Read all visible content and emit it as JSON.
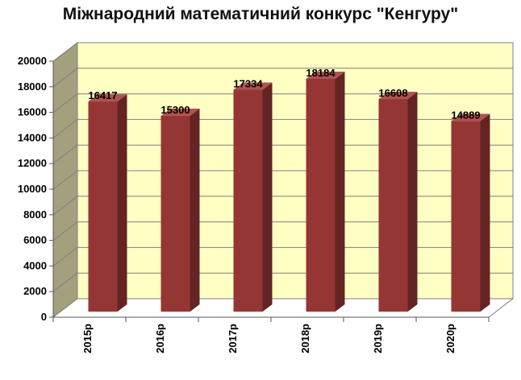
{
  "chart_data": {
    "type": "bar",
    "title": "Міжнародний математичний конкурс \"Кенгуру\"",
    "categories": [
      "2015р",
      "2016р",
      "2017р",
      "2018р",
      "2019р",
      "2020р"
    ],
    "series": [
      {
        "values": [
          16417,
          15300,
          17334,
          18184,
          16608,
          14889
        ]
      }
    ],
    "data_labels": [
      "16417",
      "15300",
      "17334",
      "18184",
      "16608",
      "14889"
    ],
    "ylim": [
      0,
      20000
    ],
    "yticks": [
      0,
      2000,
      4000,
      6000,
      8000,
      10000,
      12000,
      14000,
      16000,
      18000,
      20000
    ],
    "ytick_labels": [
      "0",
      "2000",
      "4000",
      "6000",
      "8000",
      "10000",
      "12000",
      "14000",
      "16000",
      "18000",
      "20000"
    ],
    "grid": true,
    "style": "3d-column",
    "legend": "none",
    "colors": {
      "bar_front": "#943634",
      "bar_side": "#632423",
      "bar_top": "#b05250",
      "back_wall": "#ffffc4",
      "side_wall": "#a4a07e",
      "grid": "#7f7f7f"
    }
  }
}
